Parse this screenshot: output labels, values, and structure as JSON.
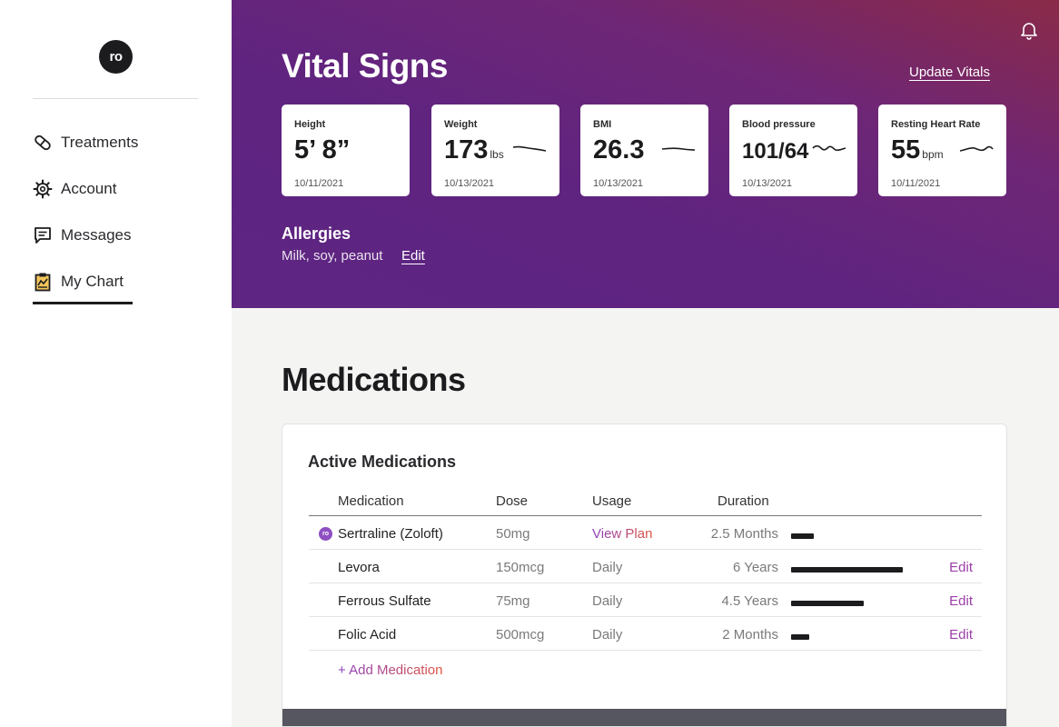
{
  "sidebar": {
    "logo": "ro",
    "items": [
      {
        "label": "Treatments",
        "icon": "pill-icon"
      },
      {
        "label": "Account",
        "icon": "gear-icon"
      },
      {
        "label": "Messages",
        "icon": "message-icon"
      },
      {
        "label": "My Chart",
        "icon": "clipboard-icon",
        "active": true
      }
    ]
  },
  "header": {
    "title": "Vital Signs",
    "update_label": "Update Vitals",
    "bell_icon": "bell-icon",
    "vitals": [
      {
        "label": "Height",
        "value": "5’ 8”",
        "unit": "",
        "date": "10/11/2021"
      },
      {
        "label": "Weight",
        "value": "173",
        "unit": "lbs",
        "date": "10/13/2021"
      },
      {
        "label": "BMI",
        "value": "26.3",
        "unit": "",
        "date": "10/13/2021"
      },
      {
        "label": "Blood pressure",
        "value": "101/64",
        "unit": "",
        "date": "10/13/2021"
      },
      {
        "label": "Resting Heart Rate",
        "value": "55",
        "unit": "bpm",
        "date": "10/11/2021"
      }
    ],
    "allergies": {
      "title": "Allergies",
      "list": "Milk, soy, peanut",
      "edit_label": "Edit"
    }
  },
  "medications": {
    "title": "Medications",
    "panel_title": "Active Medications",
    "columns": [
      "Medication",
      "Dose",
      "Usage",
      "Duration"
    ],
    "rows": [
      {
        "name": "Sertraline (Zoloft)",
        "dose": "50mg",
        "usage": "View Plan",
        "duration": "2.5 Months",
        "duration_fraction": 0.2,
        "edit": "",
        "ro_badge": "ro"
      },
      {
        "name": "Levora",
        "dose": "150mcg",
        "usage": "Daily",
        "duration": "6 Years",
        "duration_fraction": 1.0,
        "edit": "Edit"
      },
      {
        "name": "Ferrous Sulfate",
        "dose": "75mg",
        "usage": "Daily",
        "duration": "4.5 Years",
        "duration_fraction": 0.65,
        "edit": "Edit"
      },
      {
        "name": "Folic Acid",
        "dose": "500mcg",
        "usage": "Daily",
        "duration": "2 Months",
        "duration_fraction": 0.16,
        "edit": "Edit"
      }
    ],
    "add_label": "+ Add Medication"
  }
}
